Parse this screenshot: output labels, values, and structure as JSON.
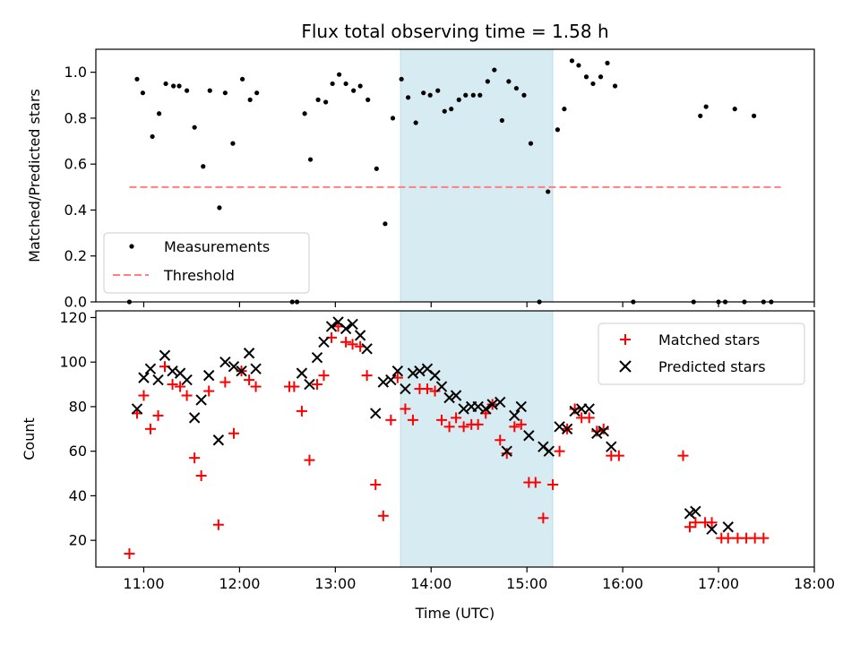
{
  "chart_data": [
    {
      "type": "scatter",
      "title": "Flux total observing time = 1.58 h",
      "xlabel": "",
      "ylabel": "Matched/Predicted stars",
      "xlim": [
        10.5,
        18.0
      ],
      "ylim": [
        0.0,
        1.1
      ],
      "yticks": [
        "0.0",
        "0.2",
        "0.4",
        "0.6",
        "0.8",
        "1.0"
      ],
      "highlight_span": {
        "x0": 13.68,
        "x1": 15.27,
        "color": "#add8e6"
      },
      "legend_position": "lower-left",
      "series": [
        {
          "name": "Measurements",
          "kind": "points",
          "color": "#000000",
          "points": [
            [
              10.85,
              0.0
            ],
            [
              10.93,
              0.97
            ],
            [
              10.99,
              0.91
            ],
            [
              11.09,
              0.72
            ],
            [
              11.16,
              0.82
            ],
            [
              11.23,
              0.95
            ],
            [
              11.31,
              0.94
            ],
            [
              11.37,
              0.94
            ],
            [
              11.45,
              0.92
            ],
            [
              11.53,
              0.76
            ],
            [
              11.62,
              0.59
            ],
            [
              11.69,
              0.92
            ],
            [
              11.79,
              0.41
            ],
            [
              11.85,
              0.91
            ],
            [
              11.93,
              0.69
            ],
            [
              12.03,
              0.97
            ],
            [
              12.11,
              0.88
            ],
            [
              12.18,
              0.91
            ],
            [
              12.55,
              0.0
            ],
            [
              12.6,
              0.0
            ],
            [
              12.68,
              0.82
            ],
            [
              12.74,
              0.62
            ],
            [
              12.82,
              0.88
            ],
            [
              12.9,
              0.87
            ],
            [
              12.97,
              0.95
            ],
            [
              13.04,
              0.99
            ],
            [
              13.11,
              0.95
            ],
            [
              13.19,
              0.92
            ],
            [
              13.26,
              0.94
            ],
            [
              13.34,
              0.88
            ],
            [
              13.43,
              0.58
            ],
            [
              13.52,
              0.34
            ],
            [
              13.6,
              0.8
            ],
            [
              13.69,
              0.97
            ],
            [
              13.76,
              0.89
            ],
            [
              13.84,
              0.78
            ],
            [
              13.92,
              0.91
            ],
            [
              13.99,
              0.9
            ],
            [
              14.07,
              0.92
            ],
            [
              14.14,
              0.83
            ],
            [
              14.21,
              0.84
            ],
            [
              14.29,
              0.88
            ],
            [
              14.36,
              0.9
            ],
            [
              14.44,
              0.9
            ],
            [
              14.51,
              0.9
            ],
            [
              14.59,
              0.96
            ],
            [
              14.66,
              1.01
            ],
            [
              14.74,
              0.79
            ],
            [
              14.81,
              0.96
            ],
            [
              14.89,
              0.93
            ],
            [
              14.97,
              0.9
            ],
            [
              15.04,
              0.69
            ],
            [
              15.13,
              0.0
            ],
            [
              15.22,
              0.48
            ],
            [
              15.32,
              0.75
            ],
            [
              15.39,
              0.84
            ],
            [
              15.47,
              1.05
            ],
            [
              15.54,
              1.03
            ],
            [
              15.62,
              0.98
            ],
            [
              15.69,
              0.95
            ],
            [
              15.77,
              0.98
            ],
            [
              15.84,
              1.04
            ],
            [
              15.92,
              0.94
            ],
            [
              16.11,
              0.0
            ],
            [
              16.74,
              0.0
            ],
            [
              16.81,
              0.81
            ],
            [
              16.87,
              0.85
            ],
            [
              17.0,
              0.0
            ],
            [
              17.07,
              0.0
            ],
            [
              17.17,
              0.84
            ],
            [
              17.27,
              0.0
            ],
            [
              17.37,
              0.81
            ],
            [
              17.47,
              0.0
            ],
            [
              17.55,
              0.0
            ]
          ]
        },
        {
          "name": "Threshold",
          "kind": "dashed-line",
          "color": "#ff7f7f",
          "points": [
            [
              10.85,
              0.5
            ],
            [
              17.65,
              0.5
            ]
          ]
        }
      ]
    },
    {
      "type": "scatter",
      "title": "",
      "xlabel": "Time (UTC)",
      "ylabel": "Count",
      "xlim": [
        10.5,
        18.0
      ],
      "ylim": [
        8.0,
        123.0
      ],
      "yticks": [
        "20",
        "40",
        "60",
        "80",
        "100",
        "120"
      ],
      "xticks": [
        "11:00",
        "12:00",
        "13:00",
        "14:00",
        "15:00",
        "16:00",
        "17:00",
        "18:00"
      ],
      "xtick_values": [
        11,
        12,
        13,
        14,
        15,
        16,
        17,
        18
      ],
      "highlight_span": {
        "x0": 13.68,
        "x1": 15.27,
        "color": "#add8e6"
      },
      "legend_position": "upper-right",
      "series": [
        {
          "name": "Matched stars",
          "kind": "plus",
          "color": "#ff0000",
          "points": [
            [
              10.85,
              14
            ],
            [
              10.93,
              77
            ],
            [
              11.0,
              85
            ],
            [
              11.07,
              70
            ],
            [
              11.15,
              76
            ],
            [
              11.22,
              98
            ],
            [
              11.3,
              90
            ],
            [
              11.38,
              89
            ],
            [
              11.45,
              85
            ],
            [
              11.53,
              57
            ],
            [
              11.6,
              49
            ],
            [
              11.68,
              87
            ],
            [
              11.78,
              27
            ],
            [
              11.85,
              91
            ],
            [
              11.94,
              68
            ],
            [
              12.02,
              96
            ],
            [
              12.1,
              92
            ],
            [
              12.17,
              89
            ],
            [
              12.52,
              89
            ],
            [
              12.57,
              89
            ],
            [
              12.65,
              78
            ],
            [
              12.73,
              56
            ],
            [
              12.81,
              90
            ],
            [
              12.88,
              94
            ],
            [
              12.96,
              111
            ],
            [
              13.03,
              116
            ],
            [
              13.11,
              109
            ],
            [
              13.18,
              108
            ],
            [
              13.26,
              107
            ],
            [
              13.33,
              94
            ],
            [
              13.42,
              45
            ],
            [
              13.5,
              31
            ],
            [
              13.58,
              74
            ],
            [
              13.65,
              93
            ],
            [
              13.73,
              79
            ],
            [
              13.81,
              74
            ],
            [
              13.88,
              88
            ],
            [
              13.96,
              88
            ],
            [
              14.04,
              87
            ],
            [
              14.11,
              74
            ],
            [
              14.19,
              71
            ],
            [
              14.26,
              75
            ],
            [
              14.34,
              71
            ],
            [
              14.42,
              72
            ],
            [
              14.49,
              72
            ],
            [
              14.57,
              77
            ],
            [
              14.64,
              81
            ],
            [
              14.72,
              65
            ],
            [
              14.79,
              59
            ],
            [
              14.87,
              71
            ],
            [
              14.94,
              72
            ],
            [
              15.02,
              46
            ],
            [
              15.09,
              46
            ],
            [
              15.17,
              30
            ],
            [
              15.27,
              45
            ],
            [
              15.34,
              60
            ],
            [
              15.42,
              70
            ],
            [
              15.5,
              79
            ],
            [
              15.57,
              75
            ],
            [
              15.65,
              75
            ],
            [
              15.73,
              69
            ],
            [
              15.8,
              70
            ],
            [
              15.88,
              58
            ],
            [
              15.96,
              58
            ],
            [
              16.63,
              58
            ],
            [
              16.7,
              26
            ],
            [
              16.76,
              28
            ],
            [
              16.86,
              28
            ],
            [
              16.93,
              28
            ],
            [
              17.03,
              21
            ],
            [
              17.1,
              21
            ],
            [
              17.2,
              21
            ],
            [
              17.29,
              21
            ],
            [
              17.38,
              21
            ],
            [
              17.47,
              21
            ]
          ]
        },
        {
          "name": "Predicted stars",
          "kind": "x",
          "color": "#000000",
          "points": [
            [
              10.93,
              79
            ],
            [
              11.0,
              93
            ],
            [
              11.07,
              97
            ],
            [
              11.15,
              92
            ],
            [
              11.22,
              103
            ],
            [
              11.3,
              96
            ],
            [
              11.38,
              95
            ],
            [
              11.45,
              92
            ],
            [
              11.53,
              75
            ],
            [
              11.6,
              83
            ],
            [
              11.68,
              94
            ],
            [
              11.78,
              65
            ],
            [
              11.85,
              100
            ],
            [
              11.94,
              98
            ],
            [
              12.02,
              96
            ],
            [
              12.1,
              104
            ],
            [
              12.17,
              97
            ],
            [
              12.65,
              95
            ],
            [
              12.73,
              90
            ],
            [
              12.81,
              102
            ],
            [
              12.88,
              109
            ],
            [
              12.96,
              116
            ],
            [
              13.03,
              118
            ],
            [
              13.11,
              115
            ],
            [
              13.18,
              117
            ],
            [
              13.26,
              112
            ],
            [
              13.33,
              106
            ],
            [
              13.42,
              77
            ],
            [
              13.5,
              91
            ],
            [
              13.58,
              92
            ],
            [
              13.65,
              96
            ],
            [
              13.73,
              88
            ],
            [
              13.81,
              95
            ],
            [
              13.88,
              96
            ],
            [
              13.96,
              97
            ],
            [
              14.04,
              94
            ],
            [
              14.11,
              89
            ],
            [
              14.19,
              84
            ],
            [
              14.26,
              85
            ],
            [
              14.34,
              79
            ],
            [
              14.42,
              80
            ],
            [
              14.49,
              80
            ],
            [
              14.57,
              79
            ],
            [
              14.64,
              81
            ],
            [
              14.72,
              82
            ],
            [
              14.79,
              60
            ],
            [
              14.87,
              76
            ],
            [
              14.94,
              80
            ],
            [
              15.02,
              67
            ],
            [
              15.17,
              62
            ],
            [
              15.23,
              60
            ],
            [
              15.34,
              71
            ],
            [
              15.42,
              70
            ],
            [
              15.5,
              78
            ],
            [
              15.57,
              79
            ],
            [
              15.65,
              79
            ],
            [
              15.73,
              68
            ],
            [
              15.8,
              69
            ],
            [
              15.88,
              62
            ],
            [
              16.7,
              32
            ],
            [
              16.76,
              33
            ],
            [
              16.93,
              25
            ],
            [
              17.1,
              26
            ]
          ]
        }
      ]
    }
  ]
}
